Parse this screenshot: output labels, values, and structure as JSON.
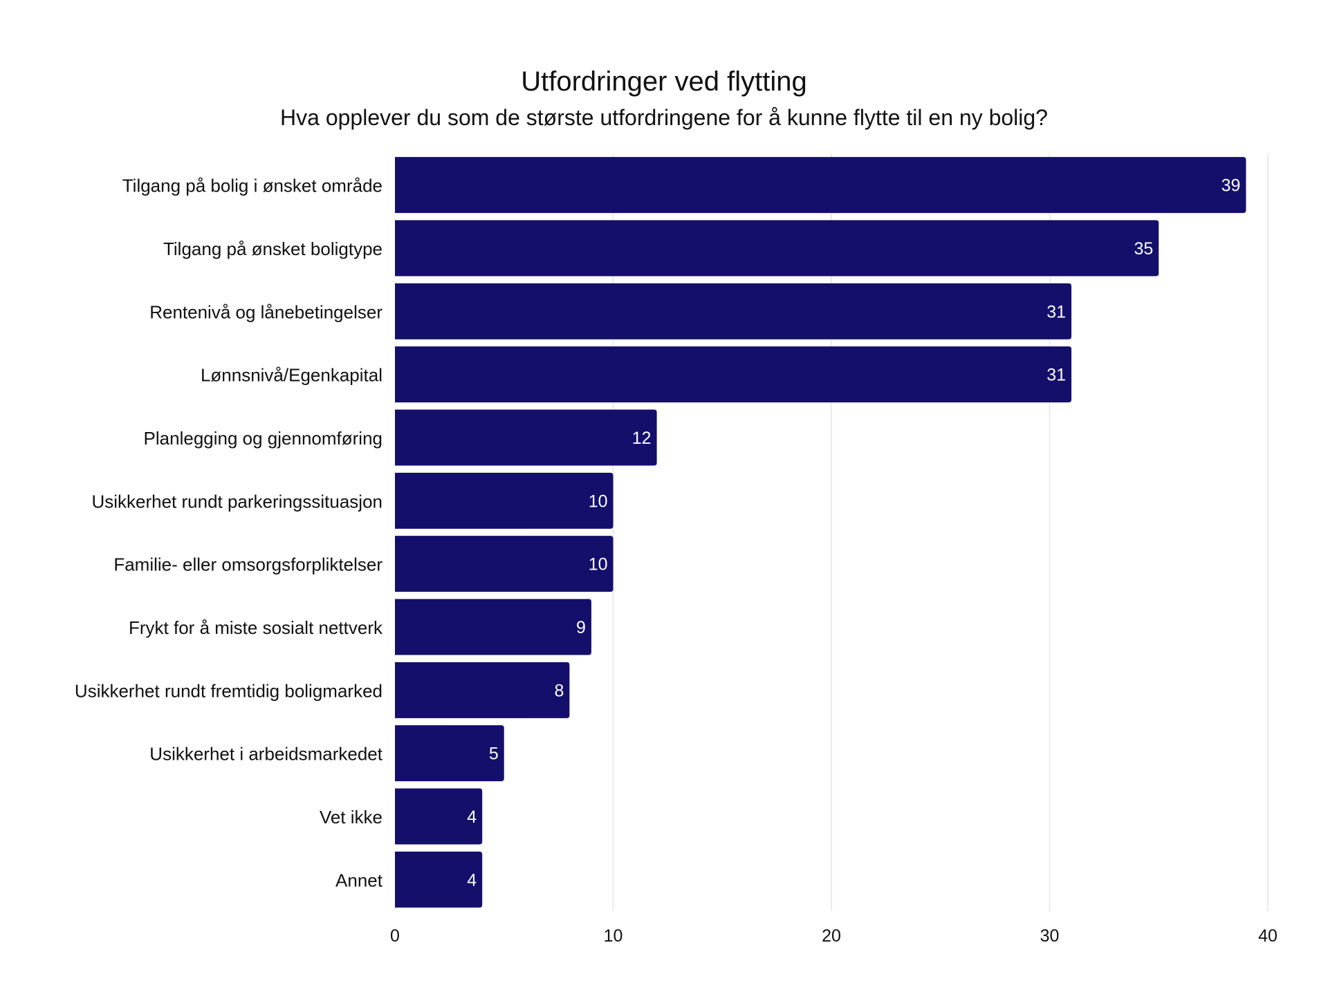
{
  "chart_data": {
    "type": "bar",
    "orientation": "horizontal",
    "title": "Utfordringer ved flytting",
    "subtitle": "Hva opplever du som de største utfordringene for å kunne flytte til en ny bolig?",
    "categories": [
      "Tilgang på bolig i ønsket område",
      "Tilgang på ønsket boligtype",
      "Rentenivå og lånebetingelser",
      "Lønnsnivå/Egenkapital",
      "Planlegging og gjennomføring",
      "Usikkerhet rundt parkeringssituasjon",
      "Familie- eller omsorgsforpliktelser",
      "Frykt for å miste sosialt nettverk",
      "Usikkerhet rundt fremtidig boligmarked",
      "Usikkerhet i arbeidsmarkedet",
      "Vet ikke",
      "Annet"
    ],
    "values": [
      39,
      35,
      31,
      31,
      12,
      10,
      10,
      9,
      8,
      5,
      4,
      4
    ],
    "xlim": [
      0,
      40
    ],
    "xticks": [
      0,
      10,
      20,
      30,
      40
    ],
    "xlabel": "",
    "ylabel": "",
    "grid": "vertical",
    "data_labels": "inside-end",
    "colors": {
      "bar": "#140f6b",
      "bar_label": "#ffffff",
      "grid": "#e4e4e4",
      "text": "#111111"
    }
  }
}
